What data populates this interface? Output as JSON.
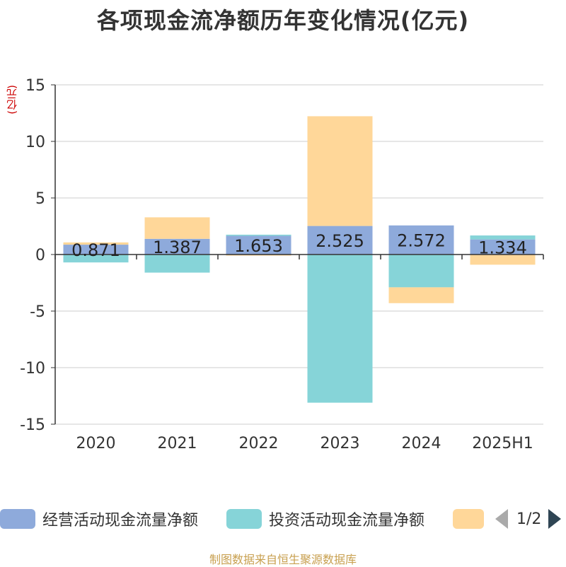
{
  "title": "各项现金流净额历年变化情况(亿元)",
  "ylabel": "(亿元)",
  "source": "制图数据来自恒生聚源数据库",
  "legend": {
    "items": [
      {
        "name": "经营活动现金流量净额",
        "color": "#8eaadb"
      },
      {
        "name": "投资活动现金流量净额",
        "color": "#86d4d8"
      },
      {
        "name": "",
        "color": "#ffd799"
      }
    ],
    "page": "1/2"
  },
  "chart_data": {
    "type": "bar",
    "stacked": true,
    "categories": [
      "2020",
      "2021",
      "2022",
      "2023",
      "2024",
      "2025H1"
    ],
    "ylim": [
      -15,
      15
    ],
    "yticks": [
      15,
      10,
      5,
      0,
      -5,
      -10,
      -15
    ],
    "grid": true,
    "series": [
      {
        "name": "经营活动现金流量净额",
        "color": "#8eaadb",
        "values": [
          0.871,
          1.387,
          1.653,
          2.525,
          2.572,
          1.334
        ],
        "labels": [
          "0.871",
          "1.387",
          "1.653",
          "2.525",
          "2.572",
          "1.334"
        ]
      },
      {
        "name": "投资活动现金流量净额",
        "color": "#86d4d8",
        "values": [
          -0.7,
          -1.6,
          0.1,
          -13.1,
          -2.9,
          0.35
        ]
      },
      {
        "name": "",
        "color": "#ffd799",
        "values": [
          0.2,
          1.9,
          -0.1,
          9.7,
          -1.4,
          -0.9
        ]
      }
    ]
  }
}
